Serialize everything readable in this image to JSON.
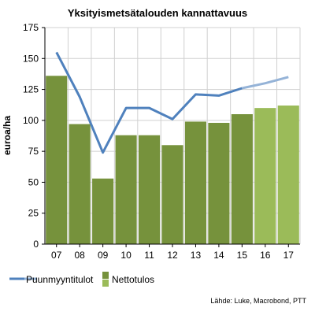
{
  "chart_data": {
    "type": "bar",
    "title": "Yksityismetsätalouden kannattavuus",
    "ylabel": "euroa/ha",
    "xlabel": "",
    "categories": [
      "07",
      "08",
      "09",
      "10",
      "11",
      "12",
      "13",
      "14",
      "15",
      "16",
      "17"
    ],
    "ylim": [
      0,
      175
    ],
    "yticks": [
      0,
      25,
      50,
      75,
      100,
      125,
      150,
      175
    ],
    "grid": true,
    "legend_position": "bottom-left",
    "source": "Lähde: Luke, Macrobond, PTT",
    "series": [
      {
        "name": "Nettotulos",
        "kind": "bar",
        "values": [
          136,
          97,
          53,
          88,
          88,
          80,
          99,
          98,
          105,
          110,
          112
        ],
        "color": "#76923c",
        "forecast_color": "#9bbb59",
        "forecast_from_index": 9
      },
      {
        "name": "Puunmyyntitulot",
        "kind": "line",
        "values": [
          155,
          119,
          74,
          110,
          110,
          101,
          121,
          120,
          126,
          130,
          135
        ],
        "color": "#4f81bd",
        "forecast_color": "#95b3d7",
        "forecast_from_index": 8
      }
    ]
  }
}
